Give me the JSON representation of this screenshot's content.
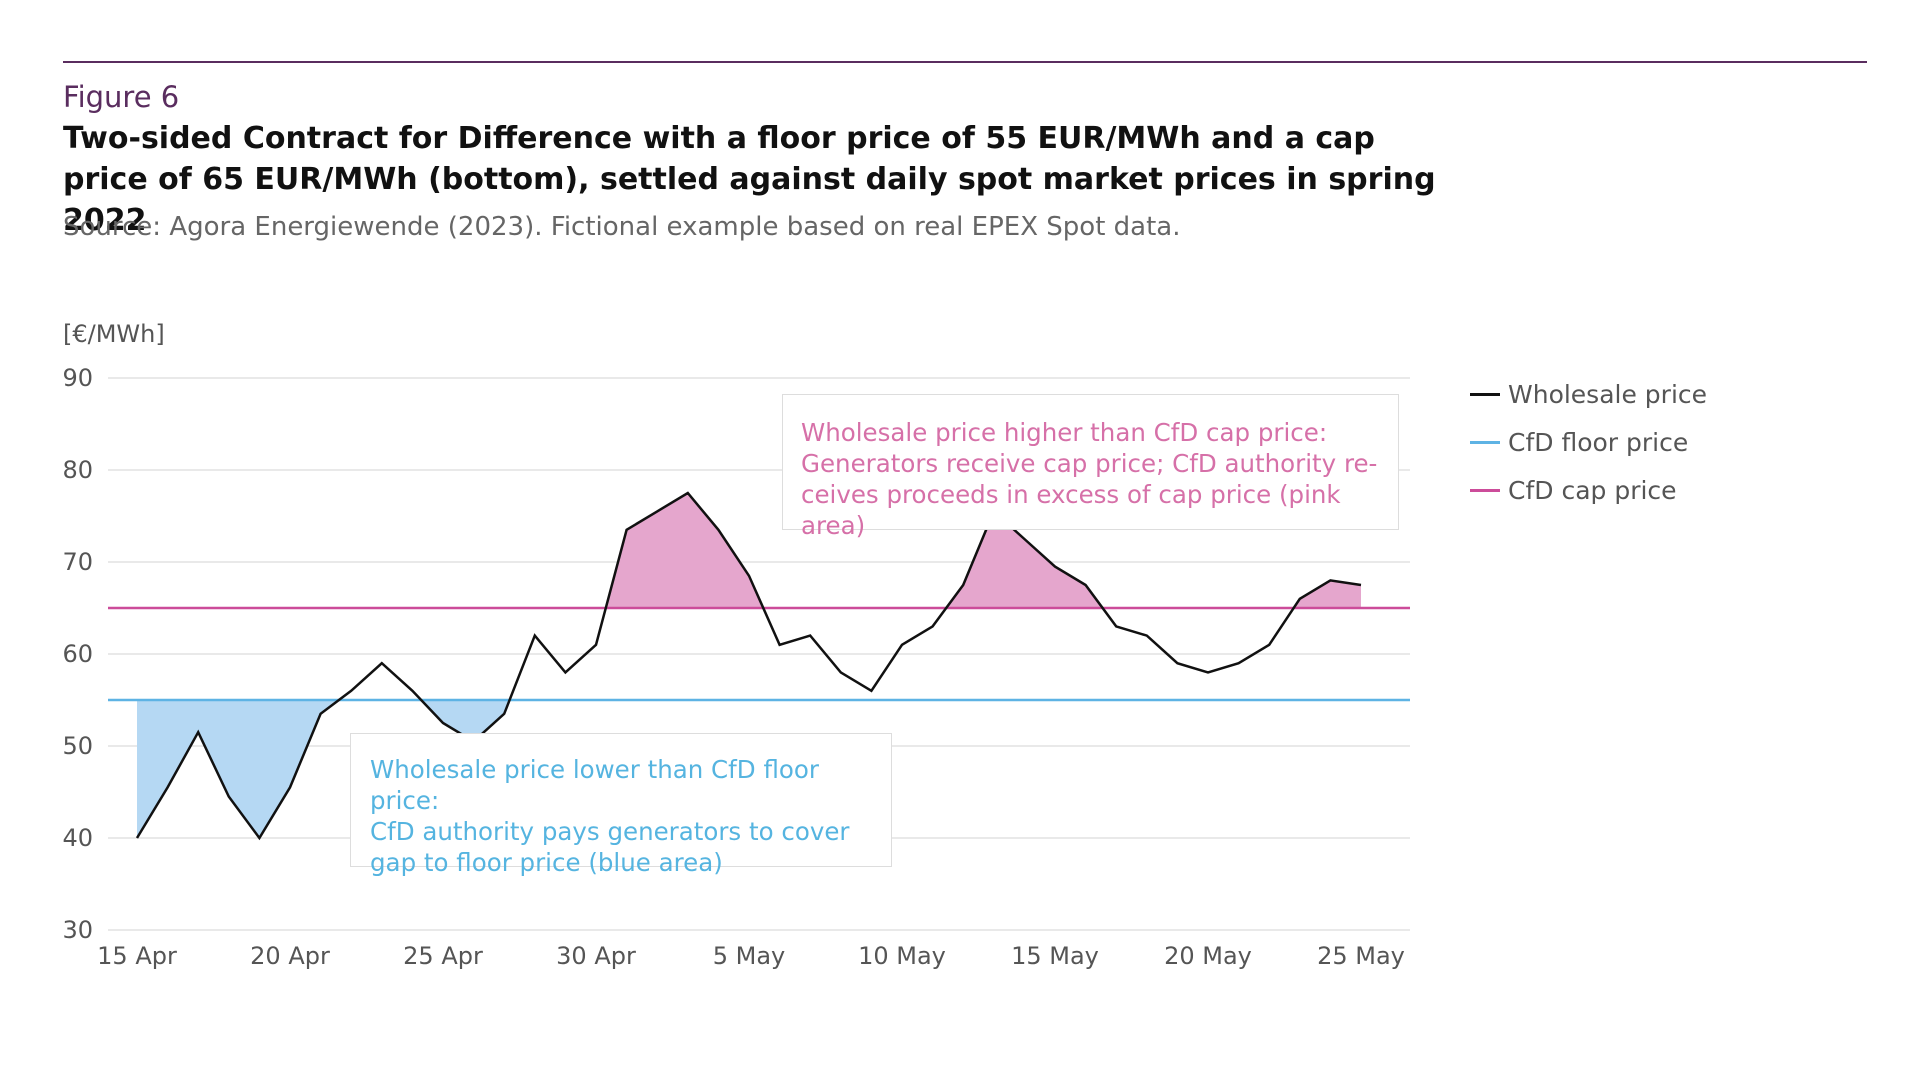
{
  "figure": {
    "label": "Figure 6",
    "title": "Two-sided Contract for Difference with a floor price of 55 EUR/MWh and a cap price of 65 EUR/MWh (bottom), settled against daily spot market prices in spring 2022",
    "source": "Source: Agora Energiewende (2023). Fictional example based on real EPEX Spot data."
  },
  "colors": {
    "wholesale": "#111111",
    "floor": "#5eb3e4",
    "cap": "#cc4c9a",
    "floor_fill": "#b5d8f3",
    "cap_fill": "#e5a6cd",
    "grid": "#e2e2e2",
    "accent": "#5a2d5f"
  },
  "legend": {
    "wholesale": "Wholesale price",
    "floor": "CfD floor price",
    "cap": "CfD cap price"
  },
  "annotations": {
    "cap": {
      "title": "Wholesale price higher than CfD cap price:",
      "line1": "Generators receive cap price; CfD authority re-",
      "line2": "ceives proceeds in excess of cap price (pink area)"
    },
    "floor": {
      "title": "Wholesale price lower than CfD floor price:",
      "line1": "CfD authority pays generators to cover",
      "line2": "gap to floor price (blue area)"
    }
  },
  "chart_data": {
    "type": "line",
    "title": "Two-sided Contract for Difference with a floor price of 55 EUR/MWh and a cap price of 65 EUR/MWh (bottom), settled against daily spot market prices in spring 2022",
    "ylabel": "[€/MWh]",
    "xlabel": "",
    "ylim": [
      30,
      90
    ],
    "yticks": [
      30,
      40,
      50,
      60,
      70,
      80,
      90
    ],
    "xlim": [
      0,
      41
    ],
    "xticks": [
      {
        "day": 0,
        "label": "15 Apr"
      },
      {
        "day": 5,
        "label": "20 Apr"
      },
      {
        "day": 10,
        "label": "25 Apr"
      },
      {
        "day": 15,
        "label": "30 Apr"
      },
      {
        "day": 20,
        "label": "5 May"
      },
      {
        "day": 25,
        "label": "10 May"
      },
      {
        "day": 30,
        "label": "15 May"
      },
      {
        "day": 35,
        "label": "20 May"
      },
      {
        "day": 40,
        "label": "25 May"
      }
    ],
    "grid": true,
    "legend_position": "right",
    "floor_price": 55,
    "cap_price": 65,
    "series": [
      {
        "name": "Wholesale price",
        "x": [
          0,
          1,
          2,
          3,
          4,
          5,
          6,
          7,
          8,
          9,
          10,
          11,
          12,
          13,
          14,
          15,
          16,
          17,
          18,
          19,
          20,
          21,
          22,
          23,
          24,
          25,
          26,
          27,
          28,
          29,
          30,
          31,
          32,
          33,
          34,
          35,
          36,
          37,
          38,
          39,
          40
        ],
        "values": [
          40,
          45.5,
          51.5,
          44.5,
          40,
          45.5,
          53.5,
          56,
          59,
          56,
          52.5,
          50.5,
          53.5,
          62,
          58,
          61,
          73.5,
          75.5,
          77.5,
          73.5,
          68.5,
          61,
          62,
          58,
          56,
          61,
          63,
          67.5,
          75.5,
          72.5,
          69.5,
          67.5,
          63,
          62,
          59,
          58,
          59,
          61,
          66,
          68,
          67.5
        ]
      },
      {
        "name": "CfD floor price",
        "values": [
          55
        ]
      },
      {
        "name": "CfD cap price",
        "values": [
          65
        ]
      }
    ]
  }
}
